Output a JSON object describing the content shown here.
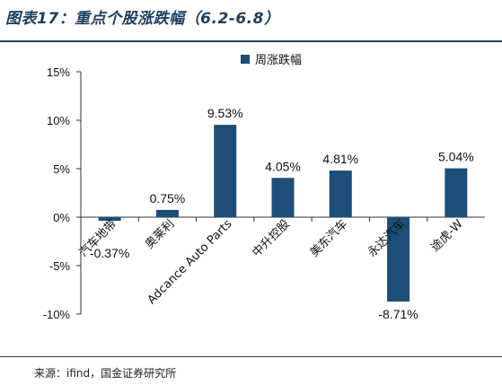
{
  "header": {
    "title": "图表17：重点个股涨跌幅（6.2-6.8）"
  },
  "footer": {
    "source": "来源：ifind，国金证券研究所"
  },
  "chart_data": {
    "type": "bar",
    "categories": [
      "汽车地带",
      "奥莱利",
      "Adcance Auto Parts",
      "中升控股",
      "美东汽车",
      "永达汽车",
      "途虎-W"
    ],
    "series": [
      {
        "name": "周涨跌幅",
        "values": [
          -0.37,
          0.75,
          9.53,
          4.05,
          4.81,
          -8.71,
          5.04
        ],
        "color": "#1c4e78"
      }
    ],
    "data_labels": [
      "-0.37%",
      "0.75%",
      "9.53%",
      "4.05%",
      "4.81%",
      "-8.71%",
      "5.04%"
    ],
    "yticks": [
      15,
      10,
      5,
      0,
      -5,
      -10
    ],
    "ytick_labels": [
      "15%",
      "10%",
      "5%",
      "0%",
      "-5%",
      "-10%"
    ],
    "ylim": [
      -10,
      15
    ],
    "legend_position": "top-center",
    "grid": false
  }
}
